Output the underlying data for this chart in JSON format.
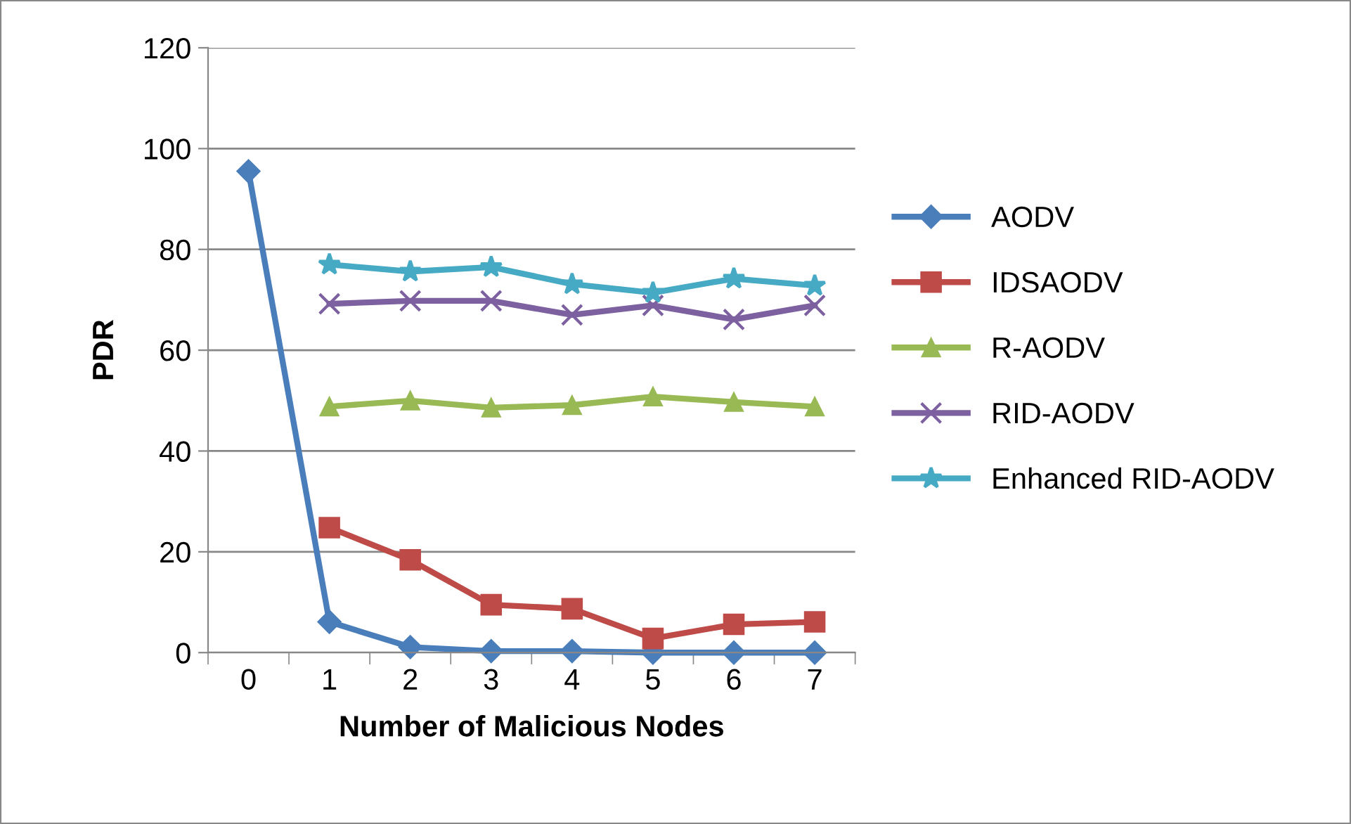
{
  "chart_data": {
    "type": "line",
    "xlabel": "Number of Malicious Nodes",
    "ylabel": "PDR",
    "categories": [
      "0",
      "1",
      "2",
      "3",
      "4",
      "5",
      "6",
      "7"
    ],
    "ylim": [
      0,
      120
    ],
    "yticks": [
      0,
      20,
      40,
      60,
      80,
      100,
      120
    ],
    "grid": "y",
    "legend": "right",
    "series": [
      {
        "name": "AODV",
        "color": "#4a7ebb",
        "marker": "diamond",
        "values": [
          95.5,
          6.1,
          1.1,
          0.3,
          0.3,
          0,
          0,
          0
        ]
      },
      {
        "name": "IDSAODV",
        "color": "#be4b48",
        "marker": "square",
        "values": [
          null,
          24.8,
          18.4,
          9.5,
          8.7,
          2.8,
          5.6,
          6.1
        ]
      },
      {
        "name": "R-AODV",
        "color": "#98b954",
        "marker": "triangle",
        "values": [
          null,
          48.8,
          50,
          48.6,
          49.1,
          50.8,
          49.7,
          48.8
        ]
      },
      {
        "name": "RID-AODV",
        "color": "#7d60a0",
        "marker": "cross",
        "values": [
          null,
          69.2,
          69.8,
          69.8,
          67,
          68.9,
          66.1,
          68.9
        ]
      },
      {
        "name": "Enhanced RID-AODV",
        "color": "#46aac5",
        "marker": "star",
        "values": [
          null,
          77,
          75.6,
          76.5,
          73.1,
          71.4,
          74.2,
          72.8
        ]
      }
    ]
  }
}
